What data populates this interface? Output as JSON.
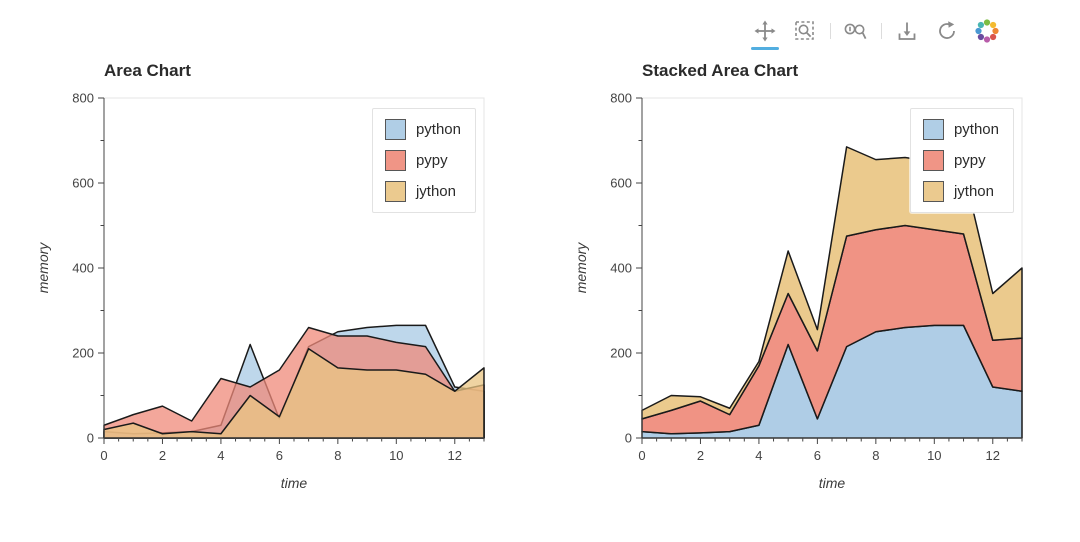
{
  "accent_color": "#52aee0",
  "icon_color": "#8a8a8a",
  "toolbar": {
    "active_tool": "pan",
    "icons": [
      {
        "name": "pan",
        "label": "Pan"
      },
      {
        "name": "box-zoom",
        "label": "Box Zoom"
      },
      {
        "name": "wheel-zoom",
        "label": "Wheel Zoom"
      },
      {
        "name": "save",
        "label": "Save"
      },
      {
        "name": "reset",
        "label": "Reset"
      },
      {
        "name": "logo",
        "label": "Bokeh"
      }
    ]
  },
  "chart_data": [
    {
      "type": "area",
      "stacked": false,
      "title": "Area Chart",
      "xlabel": "time",
      "ylabel": "memory",
      "xlim": [
        0,
        13
      ],
      "ylim": [
        0,
        800
      ],
      "xticks": [
        0,
        2,
        4,
        6,
        8,
        10,
        12
      ],
      "yticks": [
        0,
        200,
        400,
        600,
        800
      ],
      "grid": false,
      "legend_position": "top-right",
      "x": [
        0,
        1,
        2,
        3,
        4,
        5,
        6,
        7,
        8,
        9,
        10,
        11,
        12,
        13
      ],
      "series": [
        {
          "name": "python",
          "color": "#a8c9e4",
          "values": [
            15,
            10,
            12,
            15,
            30,
            220,
            45,
            215,
            250,
            260,
            265,
            265,
            120,
            110
          ]
        },
        {
          "name": "pypy",
          "color": "#ef8a7a",
          "values": [
            30,
            55,
            75,
            40,
            140,
            120,
            160,
            260,
            240,
            240,
            225,
            215,
            110,
            125
          ]
        },
        {
          "name": "jython",
          "color": "#e9c583",
          "values": [
            20,
            35,
            10,
            15,
            10,
            100,
            50,
            210,
            165,
            160,
            160,
            150,
            110,
            165
          ]
        }
      ]
    },
    {
      "type": "area",
      "stacked": true,
      "title": "Stacked Area Chart",
      "xlabel": "time",
      "ylabel": "memory",
      "xlim": [
        0,
        13
      ],
      "ylim": [
        0,
        800
      ],
      "xticks": [
        0,
        2,
        4,
        6,
        8,
        10,
        12
      ],
      "yticks": [
        0,
        200,
        400,
        600,
        800
      ],
      "grid": false,
      "legend_position": "top-right",
      "x": [
        0,
        1,
        2,
        3,
        4,
        5,
        6,
        7,
        8,
        9,
        10,
        11,
        12,
        13
      ],
      "series": [
        {
          "name": "python",
          "color": "#a8c9e4",
          "values": [
            15,
            10,
            12,
            15,
            30,
            220,
            45,
            215,
            250,
            260,
            265,
            265,
            120,
            110
          ]
        },
        {
          "name": "pypy",
          "color": "#ef8a7a",
          "values": [
            30,
            55,
            75,
            40,
            140,
            120,
            160,
            260,
            240,
            240,
            225,
            215,
            110,
            125
          ]
        },
        {
          "name": "jython",
          "color": "#e9c583",
          "values": [
            20,
            35,
            10,
            15,
            10,
            100,
            50,
            210,
            165,
            160,
            160,
            150,
            110,
            165
          ]
        }
      ]
    }
  ]
}
